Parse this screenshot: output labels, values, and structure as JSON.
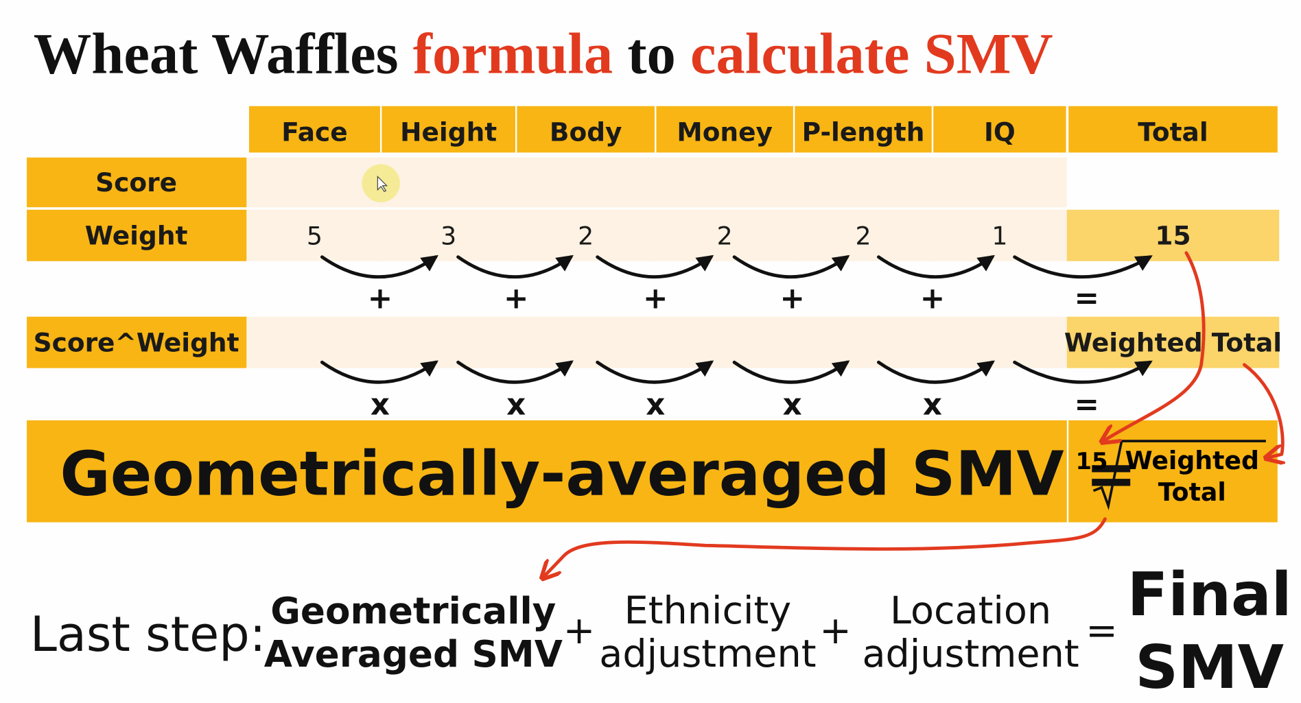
{
  "title": {
    "parts": [
      "Wheat Waffles",
      "formula",
      "to",
      "calculate SMV"
    ]
  },
  "table": {
    "columns": [
      "Face",
      "Height",
      "Body",
      "Money",
      "P-length",
      "IQ",
      "Total"
    ],
    "rows": [
      {
        "label": "Score"
      },
      {
        "label": "Weight",
        "values": [
          5,
          3,
          2,
          2,
          2,
          1
        ],
        "total": 15
      },
      {
        "label": "Score^Weight",
        "total": "Weighted Total"
      }
    ]
  },
  "operators": {
    "sum": [
      "+",
      "+",
      "+",
      "+",
      "+",
      "="
    ],
    "product": [
      "x",
      "x",
      "x",
      "x",
      "x",
      "="
    ]
  },
  "formula": {
    "label": "Geometrically-averaged SMV =",
    "root_index": "15",
    "radicand": [
      "Weighted",
      "Total"
    ]
  },
  "last_step": {
    "label": "Last step:",
    "terms": [
      {
        "lines": [
          "Geometrically",
          "Averaged SMV"
        ]
      },
      {
        "lines": [
          "Ethnicity",
          "adjustment"
        ]
      },
      {
        "lines": [
          "Location",
          "adjustment"
        ]
      },
      {
        "lines": [
          "Final",
          "SMV"
        ]
      }
    ],
    "operators": [
      "+",
      "+",
      "="
    ]
  }
}
